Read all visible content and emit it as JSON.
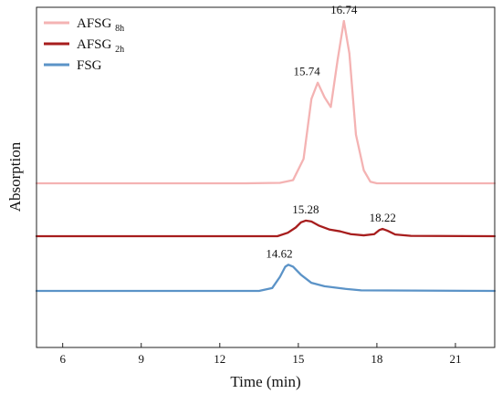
{
  "chart_data": {
    "type": "line",
    "title": "",
    "xlabel": "Time (min)",
    "ylabel": "Absorption",
    "xlim": [
      5,
      22.5
    ],
    "x_ticks": [
      6,
      9,
      12,
      15,
      18,
      21
    ],
    "grid": false,
    "legend_position": "top-left",
    "series": [
      {
        "name": "AFSG8h",
        "legend_base": "AFSG",
        "legend_sub": "8h",
        "color": "#F4B3B3",
        "points": [
          [
            5.0,
            0
          ],
          [
            13.0,
            0
          ],
          [
            14.3,
            0.003
          ],
          [
            14.8,
            0.02
          ],
          [
            15.2,
            0.15
          ],
          [
            15.5,
            0.52
          ],
          [
            15.74,
            0.62
          ],
          [
            16.0,
            0.53
          ],
          [
            16.24,
            0.47
          ],
          [
            16.5,
            0.76
          ],
          [
            16.74,
            1.0
          ],
          [
            16.95,
            0.8
          ],
          [
            17.2,
            0.3
          ],
          [
            17.5,
            0.08
          ],
          [
            17.75,
            0.01
          ],
          [
            18.0,
            0
          ],
          [
            22.5,
            0
          ]
        ],
        "annotations": [
          {
            "x": 15.74,
            "y": 0.62,
            "label": "15.74"
          },
          {
            "x": 16.74,
            "y": 1.0,
            "label": "16.74"
          }
        ]
      },
      {
        "name": "AFSG2h",
        "legend_base": "AFSG",
        "legend_sub": "2h",
        "color": "#A71D1D",
        "points": [
          [
            5.0,
            0
          ],
          [
            14.2,
            0
          ],
          [
            14.6,
            0.02
          ],
          [
            14.9,
            0.05
          ],
          [
            15.1,
            0.08
          ],
          [
            15.28,
            0.09
          ],
          [
            15.5,
            0.085
          ],
          [
            15.8,
            0.06
          ],
          [
            16.2,
            0.038
          ],
          [
            16.6,
            0.028
          ],
          [
            17.0,
            0.012
          ],
          [
            17.5,
            0.005
          ],
          [
            17.9,
            0.012
          ],
          [
            18.1,
            0.036
          ],
          [
            18.22,
            0.042
          ],
          [
            18.4,
            0.032
          ],
          [
            18.7,
            0.01
          ],
          [
            19.3,
            0.002
          ],
          [
            22.5,
            0
          ]
        ],
        "annotations": [
          {
            "x": 15.28,
            "y": 0.09,
            "label": "15.28"
          },
          {
            "x": 18.22,
            "y": 0.042,
            "label": "18.22"
          }
        ]
      },
      {
        "name": "FSG",
        "legend_base": "FSG",
        "legend_sub": "",
        "color": "#5B93C7",
        "points": [
          [
            5.0,
            0
          ],
          [
            13.5,
            0
          ],
          [
            14.0,
            0.014
          ],
          [
            14.3,
            0.07
          ],
          [
            14.5,
            0.12
          ],
          [
            14.62,
            0.13
          ],
          [
            14.8,
            0.12
          ],
          [
            15.1,
            0.08
          ],
          [
            15.5,
            0.04
          ],
          [
            16.0,
            0.023
          ],
          [
            16.8,
            0.01
          ],
          [
            17.4,
            0.003
          ],
          [
            22.5,
            0
          ]
        ],
        "annotations": [
          {
            "x": 14.62,
            "y": 0.13,
            "label": "14.62"
          }
        ]
      }
    ]
  }
}
